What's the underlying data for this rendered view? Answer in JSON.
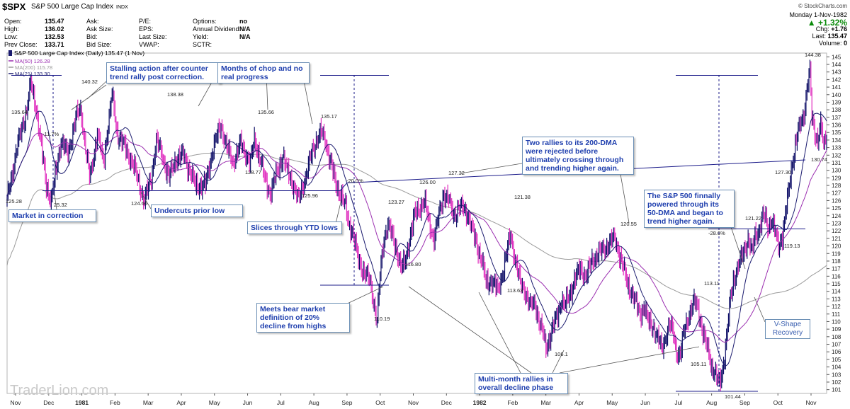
{
  "header": {
    "symbol": "$SPX",
    "name": "S&P 500 Large Cap Index",
    "exchange": "INDX",
    "watermark": "© StockCharts.com",
    "date": "Monday  1-Nov-1982",
    "change_pct": "▲ +1.32%",
    "fields": [
      {
        "label": "Open:",
        "value": "135.47"
      },
      {
        "label": "High:",
        "value": "136.02"
      },
      {
        "label": "Low:",
        "value": "132.53"
      },
      {
        "label": "Prev Close:",
        "value": "133.71"
      }
    ],
    "fields2": [
      {
        "label": "Ask:",
        "value": ""
      },
      {
        "label": "Ask Size:",
        "value": ""
      },
      {
        "label": "Bid:",
        "value": ""
      },
      {
        "label": "Bid Size:",
        "value": ""
      }
    ],
    "fields3": [
      {
        "label": "P/E:",
        "value": ""
      },
      {
        "label": "EPS:",
        "value": ""
      },
      {
        "label": "Last Size:",
        "value": ""
      },
      {
        "label": "VWAP:",
        "value": ""
      }
    ],
    "fields4": [
      {
        "label": "Options:",
        "value": "no"
      },
      {
        "label": "Annual Dividend:",
        "value": "N/A"
      },
      {
        "label": "Yield:",
        "value": "N/A"
      },
      {
        "label": "SCTR:",
        "value": ""
      }
    ],
    "right_fields": [
      {
        "label": "Chg:",
        "value": "+1.76"
      },
      {
        "label": "Last:",
        "value": "135.47"
      },
      {
        "label": "Volume:",
        "value": "0"
      }
    ]
  },
  "legend": {
    "title": "S&P 500 Large Cap Index (Daily) 135.47 (1 Nov)",
    "items": [
      {
        "label": "MA(50) 126.28",
        "color": "#9b2fb0"
      },
      {
        "label": "MA(200) 115.78",
        "color": "#9a9a9a"
      },
      {
        "label": "MA(21) 133.30",
        "color": "#1a1a6e"
      }
    ]
  },
  "chart_data": {
    "type": "candlestick",
    "title": "S&P 500 Large Cap Index (Daily)",
    "ylim": [
      100.5,
      145.5
    ],
    "y_ticks": [
      101,
      102,
      103,
      104,
      105,
      106,
      107,
      108,
      109,
      110,
      111,
      112,
      113,
      114,
      115,
      116,
      117,
      118,
      119,
      120,
      121,
      122,
      123,
      124,
      125,
      126,
      127,
      128,
      129,
      130,
      131,
      132,
      133,
      134,
      135,
      136,
      137,
      138,
      139,
      140,
      141,
      142,
      143,
      144,
      145
    ],
    "x_labels": [
      "Nov",
      "Dec",
      "1981",
      "Feb",
      "Mar",
      "Apr",
      "May",
      "Jun",
      "Jul",
      "Aug",
      "Sep",
      "Oct",
      "Nov",
      "Dec",
      "1982",
      "Feb",
      "Mar",
      "Apr",
      "May",
      "Jun",
      "Jul",
      "Aug",
      "Sep",
      "Oct",
      "Nov"
    ],
    "x_label_bold": "1981|1982",
    "series_keypoints": [
      [
        0,
        126
      ],
      [
        10,
        133
      ],
      [
        20,
        138
      ],
      [
        24,
        141.5
      ],
      [
        30,
        138
      ],
      [
        35,
        133
      ],
      [
        40,
        128
      ],
      [
        45,
        126
      ],
      [
        50,
        130
      ],
      [
        55,
        134
      ],
      [
        62,
        132
      ],
      [
        70,
        137
      ],
      [
        75,
        138
      ],
      [
        80,
        133
      ],
      [
        84,
        129
      ],
      [
        86,
        130
      ],
      [
        92,
        135
      ],
      [
        98,
        131
      ],
      [
        107,
        140
      ],
      [
        112,
        135
      ],
      [
        120,
        133
      ],
      [
        128,
        131
      ],
      [
        135,
        128
      ],
      [
        140,
        126
      ],
      [
        147,
        129
      ],
      [
        152,
        134
      ],
      [
        158,
        132
      ],
      [
        165,
        129
      ],
      [
        172,
        131.5
      ],
      [
        180,
        132
      ],
      [
        186,
        130
      ],
      [
        192,
        128
      ],
      [
        202,
        128
      ],
      [
        210,
        133
      ],
      [
        218,
        136
      ],
      [
        224,
        133
      ],
      [
        230,
        131
      ],
      [
        238,
        133.5
      ],
      [
        248,
        131
      ],
      [
        252,
        134
      ],
      [
        258,
        131.5
      ],
      [
        262,
        129
      ],
      [
        268,
        127
      ],
      [
        276,
        130
      ],
      [
        281,
        132
      ],
      [
        285,
        130
      ],
      [
        292,
        128
      ],
      [
        297,
        126
      ],
      [
        306,
        130
      ],
      [
        310,
        132
      ],
      [
        315,
        134
      ],
      [
        320,
        135
      ],
      [
        324,
        134
      ],
      [
        330,
        131
      ],
      [
        335,
        128
      ],
      [
        340,
        127
      ],
      [
        345,
        125
      ],
      [
        348,
        123
      ],
      [
        352,
        122
      ],
      [
        358,
        118
      ],
      [
        362,
        117
      ],
      [
        367,
        116
      ],
      [
        370,
        115
      ],
      [
        373,
        113
      ],
      [
        377,
        110.2
      ],
      [
        380,
        116
      ],
      [
        384,
        121
      ],
      [
        388,
        123
      ],
      [
        393,
        121
      ],
      [
        398,
        119
      ],
      [
        402,
        117
      ],
      [
        406,
        118
      ],
      [
        410,
        121
      ],
      [
        415,
        124
      ],
      [
        420,
        125
      ],
      [
        425,
        126
      ],
      [
        430,
        123
      ],
      [
        435,
        121
      ],
      [
        440,
        124
      ],
      [
        445,
        127
      ],
      [
        450,
        126
      ],
      [
        455,
        124
      ],
      [
        460,
        125
      ],
      [
        465,
        125
      ],
      [
        470,
        124
      ],
      [
        474,
        122
      ],
      [
        479,
        120
      ],
      [
        484,
        118
      ],
      [
        488,
        115
      ],
      [
        494,
        115.5
      ],
      [
        500,
        114
      ],
      [
        505,
        116.5
      ],
      [
        509,
        119
      ],
      [
        513,
        121.5
      ],
      [
        518,
        118
      ],
      [
        523,
        115
      ],
      [
        528,
        114
      ],
      [
        533,
        112
      ],
      [
        538,
        112.5
      ],
      [
        542,
        110
      ],
      [
        546,
        108.5
      ],
      [
        549,
        106.5
      ],
      [
        553,
        108
      ],
      [
        557,
        109.5
      ],
      [
        561,
        111
      ],
      [
        565,
        113
      ],
      [
        568,
        112
      ],
      [
        573,
        113.5
      ],
      [
        578,
        115.5
      ],
      [
        584,
        117
      ],
      [
        590,
        116
      ],
      [
        596,
        118
      ],
      [
        602,
        119
      ],
      [
        608,
        119.5
      ],
      [
        614,
        120.5
      ],
      [
        619,
        121
      ],
      [
        624,
        119
      ],
      [
        628,
        117
      ],
      [
        632,
        115
      ],
      [
        636,
        114
      ],
      [
        640,
        112.5
      ],
      [
        645,
        111
      ],
      [
        649,
        112
      ],
      [
        653,
        110
      ],
      [
        658,
        109.5
      ],
      [
        662,
        108
      ],
      [
        667,
        106.5
      ],
      [
        671,
        108
      ],
      [
        675,
        109.5
      ],
      [
        679,
        108.5
      ],
      [
        682,
        106
      ],
      [
        686,
        105.5
      ],
      [
        690,
        109
      ],
      [
        695,
        111
      ],
      [
        700,
        112.5
      ],
      [
        704,
        112
      ],
      [
        708,
        109
      ],
      [
        712,
        107
      ],
      [
        715,
        106
      ],
      [
        718,
        104
      ],
      [
        720,
        103.5
      ],
      [
        723,
        102.5
      ],
      [
        725,
        101.8
      ],
      [
        728,
        103
      ],
      [
        731,
        105.5
      ],
      [
        734,
        109
      ],
      [
        737,
        113
      ],
      [
        740,
        115.5
      ],
      [
        744,
        117
      ],
      [
        747,
        118
      ],
      [
        751,
        119.5
      ],
      [
        755,
        121
      ],
      [
        759,
        119
      ],
      [
        762,
        121.5
      ],
      [
        766,
        122
      ],
      [
        769,
        123.5
      ],
      [
        772,
        124
      ],
      [
        775,
        122.5
      ],
      [
        779,
        123.5
      ],
      [
        783,
        121.5
      ],
      [
        786,
        120
      ],
      [
        790,
        121.5
      ],
      [
        794,
        125
      ],
      [
        797,
        128
      ],
      [
        800,
        131
      ],
      [
        804,
        134
      ],
      [
        808,
        136
      ],
      [
        811,
        137
      ],
      [
        813,
        138.5
      ],
      [
        815,
        141
      ],
      [
        818,
        143
      ],
      [
        820,
        137
      ],
      [
        823,
        135
      ],
      [
        826,
        134
      ],
      [
        829,
        136
      ],
      [
        832,
        133
      ],
      [
        835,
        135
      ]
    ],
    "ma_lines": [
      {
        "name": "MA(21)",
        "color": "#1a1a6e",
        "value": "133.30"
      },
      {
        "name": "MA(50)",
        "color": "#9b2fb0",
        "value": "126.28"
      },
      {
        "name": "MA(200)",
        "color": "#9a9a9a",
        "value": "115.78"
      }
    ],
    "price_labels": [
      {
        "text": "125.28"
      },
      {
        "text": "135.64"
      },
      {
        "text": "-11.7%"
      },
      {
        "text": "25.32"
      },
      {
        "text": "140.32"
      },
      {
        "text": "124.66"
      },
      {
        "text": "138.38"
      },
      {
        "text": "135.66"
      },
      {
        "text": "128.77"
      },
      {
        "text": "135.17"
      },
      {
        "text": "125.96"
      },
      {
        "text": "-20.0%"
      },
      {
        "text": "123.27"
      },
      {
        "text": "126.00"
      },
      {
        "text": "127.32"
      },
      {
        "text": "116.80"
      },
      {
        "text": "110.19"
      },
      {
        "text": "121.38"
      },
      {
        "text": "113.63"
      },
      {
        "text": "106.1"
      },
      {
        "text": "120.55"
      },
      {
        "text": "-28.6%"
      },
      {
        "text": "113.11"
      },
      {
        "text": "105.11"
      },
      {
        "text": "101.44"
      },
      {
        "text": "121.22"
      },
      {
        "text": "127.30"
      },
      {
        "text": "119.13"
      },
      {
        "text": "144.38"
      },
      {
        "text": "130.74"
      }
    ],
    "annotations": [
      "Stalling action after counter trend rally post correction.",
      "Months of chop and no real progress",
      "Two rallies to its 200-DMA were rejected before ultimately crossing through and trending higher again.",
      "Market in correction",
      "Undercuts prior low",
      "Slices through YTD lows",
      "The S&P 500 finnally powered through its 50-DMA and began to trend higher again.",
      "Meets bear market definition of 20% decline from highs",
      "V-Shape Recovery",
      "Multi-month rallies in overall decline phase"
    ]
  },
  "branding": {
    "watermark": "TraderLion.com"
  }
}
